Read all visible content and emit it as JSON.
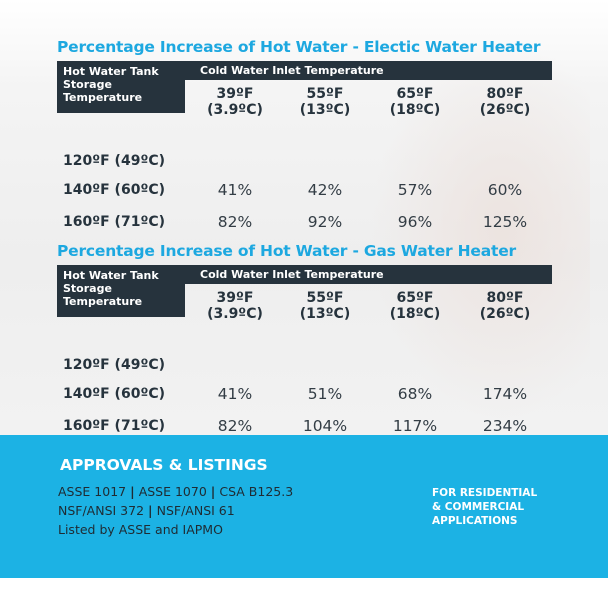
{
  "tables": [
    {
      "title": "Percentage Increase of Hot Water - Electic Water Heater",
      "row_header": [
        "Hot Water Tank",
        "Storage",
        "Temperature"
      ],
      "col_group_header": "Cold Water Inlet Temperature",
      "columns": [
        {
          "f": "39ºF",
          "c": "(3.9ºC)"
        },
        {
          "f": "55ºF",
          "c": "(13ºC)"
        },
        {
          "f": "65ºF",
          "c": "(18ºC)"
        },
        {
          "f": "80ºF",
          "c": "(26ºC)"
        }
      ],
      "rows": [
        {
          "label": "120ºF (49ºC)",
          "values": [
            "",
            "",
            "",
            ""
          ]
        },
        {
          "label": "140ºF (60ºC)",
          "values": [
            "41%",
            "42%",
            "57%",
            "60%"
          ]
        },
        {
          "label": "160ºF (71ºC)",
          "values": [
            "82%",
            "92%",
            "96%",
            "125%"
          ]
        }
      ]
    },
    {
      "title": "Percentage Increase of Hot Water - Gas Water Heater",
      "row_header": [
        "Hot Water Tank",
        "Storage",
        "Temperature"
      ],
      "col_group_header": "Cold Water Inlet Temperature",
      "columns": [
        {
          "f": "39ºF",
          "c": "(3.9ºC)"
        },
        {
          "f": "55ºF",
          "c": "(13ºC)"
        },
        {
          "f": "65ºF",
          "c": "(18ºC)"
        },
        {
          "f": "80ºF",
          "c": "(26ºC)"
        }
      ],
      "rows": [
        {
          "label": "120ºF (49ºC)",
          "values": [
            "",
            "",
            "",
            ""
          ]
        },
        {
          "label": "140ºF (60ºC)",
          "values": [
            "41%",
            "51%",
            "68%",
            "174%"
          ]
        },
        {
          "label": "160ºF (71ºC)",
          "values": [
            "82%",
            "104%",
            "117%",
            "234%"
          ]
        }
      ]
    }
  ],
  "approvals": {
    "title": "APPROVALS & LISTINGS",
    "line1": [
      "ASSE 1017",
      "ASSE 1070",
      "CSA B125.3"
    ],
    "line2": [
      "NSF/ANSI 372",
      "NSF/ANSI 61"
    ],
    "line3": "Listed by ASSE and IAPMO",
    "separator": "|"
  },
  "applications": [
    "FOR RESIDENTIAL",
    "& COMMERCIAL",
    "APPLICATIONS"
  ],
  "colors": {
    "title_blue": "#1da8e0",
    "header_dark": "#26333d",
    "band_blue": "#1cb2e4"
  }
}
